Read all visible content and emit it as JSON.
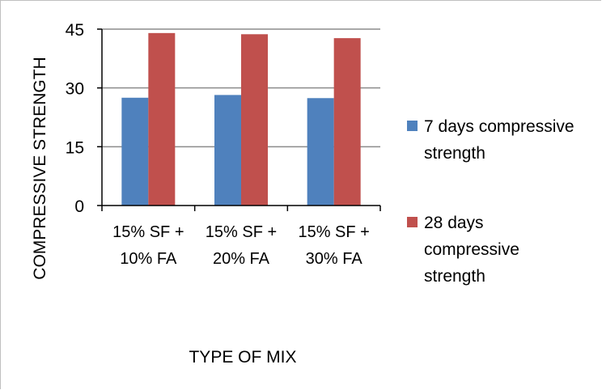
{
  "chart_data": {
    "type": "bar",
    "categories": [
      [
        "15% SF +",
        "10% FA"
      ],
      [
        "15% SF +",
        "20% FA"
      ],
      [
        "15% SF +",
        "30% FA"
      ]
    ],
    "series": [
      {
        "name": "7 days compressive strength",
        "name_lines": [
          "7 days compressive",
          "strength"
        ],
        "color": "#4f81bd",
        "values": [
          27.5,
          28.2,
          27.4
        ]
      },
      {
        "name": "28 days compressive strength",
        "name_lines": [
          "28 days",
          "compressive",
          "strength"
        ],
        "color": "#c0504d",
        "values": [
          44.0,
          43.7,
          42.7
        ]
      }
    ],
    "xlabel": "TYPE OF MIX",
    "ylabel": "COMPRESSIVE STRENGTH",
    "ylim": [
      0,
      45
    ],
    "yticks": [
      0,
      15,
      30,
      45
    ],
    "grid": true,
    "legend_position": "right"
  }
}
